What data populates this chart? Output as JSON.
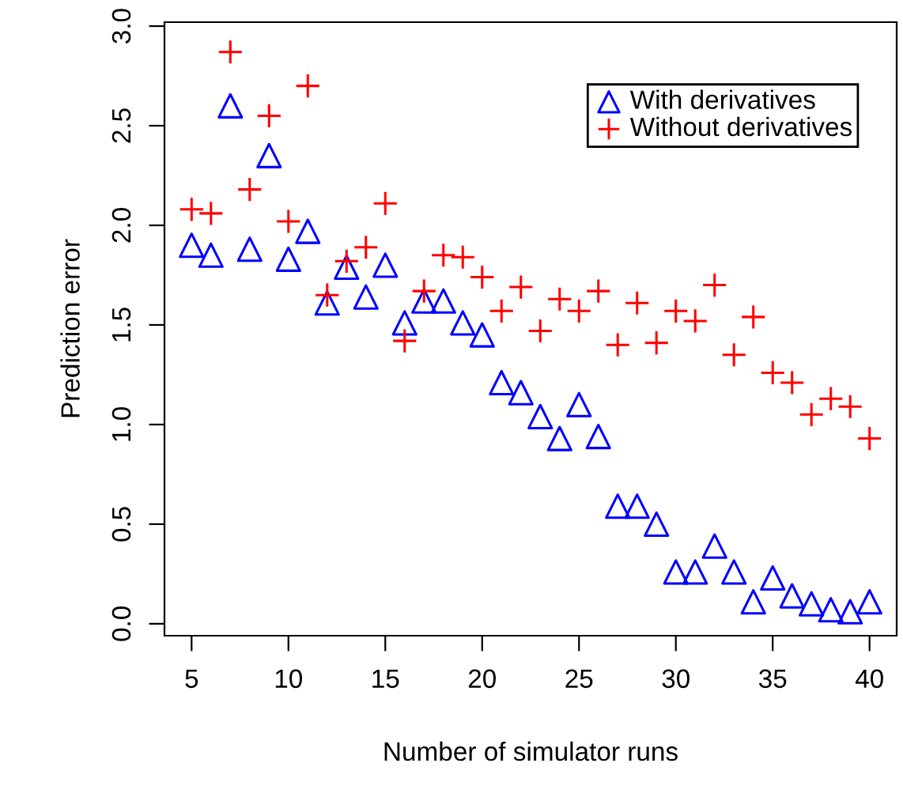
{
  "chart_data": {
    "type": "scatter",
    "xlabel": "Number of simulator runs",
    "ylabel": "Prediction error",
    "x": [
      5,
      6,
      7,
      8,
      9,
      10,
      11,
      12,
      13,
      14,
      15,
      16,
      17,
      18,
      19,
      20,
      21,
      22,
      23,
      24,
      25,
      26,
      27,
      28,
      29,
      30,
      31,
      32,
      33,
      34,
      35,
      36,
      37,
      38,
      39,
      40
    ],
    "series": [
      {
        "name": "With derivatives",
        "color": "#0000ff",
        "marker": "triangle",
        "values": [
          1.9,
          1.85,
          2.6,
          1.88,
          2.35,
          1.83,
          1.97,
          1.61,
          1.79,
          1.64,
          1.8,
          1.51,
          1.62,
          1.62,
          1.51,
          1.45,
          1.21,
          1.16,
          1.04,
          0.93,
          1.1,
          0.94,
          0.59,
          0.59,
          0.5,
          0.26,
          0.26,
          0.39,
          0.26,
          0.11,
          0.23,
          0.14,
          0.1,
          0.07,
          0.06,
          0.11
        ]
      },
      {
        "name": "Without derivatives",
        "color": "#ff0000",
        "marker": "cross",
        "values": [
          2.08,
          2.06,
          2.87,
          2.18,
          2.55,
          2.02,
          2.7,
          1.65,
          1.82,
          1.89,
          2.11,
          1.42,
          1.67,
          1.85,
          1.84,
          1.74,
          1.57,
          1.69,
          1.47,
          1.63,
          1.57,
          1.67,
          1.4,
          1.61,
          1.41,
          1.57,
          1.52,
          1.7,
          1.35,
          1.54,
          1.26,
          1.21,
          1.05,
          1.13,
          1.09,
          0.93
        ]
      }
    ],
    "xlim": [
      3.6,
      41.4
    ],
    "ylim": [
      -0.06,
      3.02
    ],
    "xticks": [
      5,
      10,
      15,
      20,
      25,
      30,
      35,
      40
    ],
    "yticks": [
      {
        "value": 0,
        "label": "0.0"
      },
      {
        "value": 0.5,
        "label": "0.5"
      },
      {
        "value": 1,
        "label": "1.0"
      },
      {
        "value": 1.5,
        "label": "1.5"
      },
      {
        "value": 2,
        "label": "2.0"
      },
      {
        "value": 2.5,
        "label": "2.5"
      },
      {
        "value": 3,
        "label": "3.0"
      }
    ],
    "grid": false,
    "legend": "top right"
  }
}
